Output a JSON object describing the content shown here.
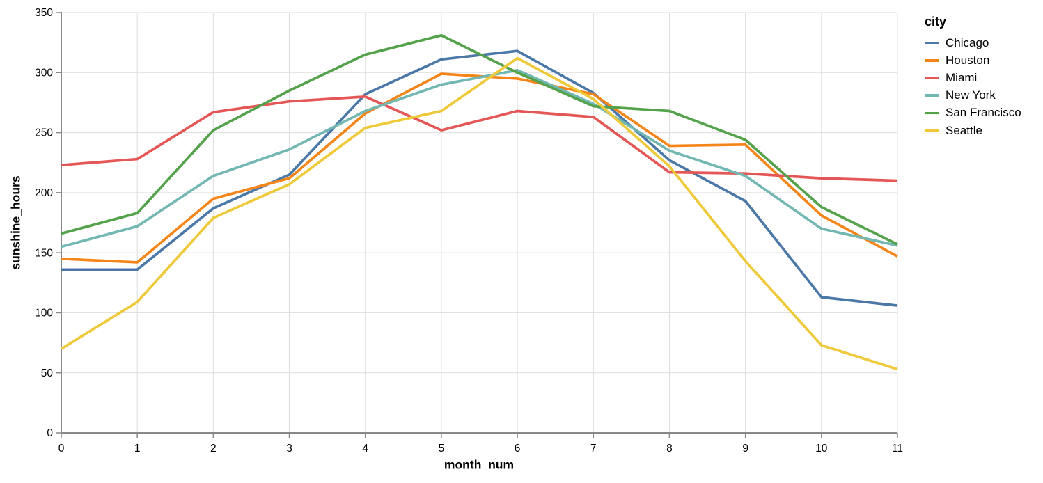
{
  "chart_data": {
    "type": "line",
    "title": "",
    "xlabel": "month_num",
    "ylabel": "sunshine_hours",
    "legend_title": "city",
    "legend_position": "right",
    "grid": true,
    "x_ticks": [
      0,
      1,
      2,
      3,
      4,
      5,
      6,
      7,
      8,
      9,
      10,
      11
    ],
    "y_ticks": [
      0,
      50,
      100,
      150,
      200,
      250,
      300,
      350
    ],
    "xlim": [
      0,
      11
    ],
    "ylim": [
      0,
      350
    ],
    "x": [
      0,
      1,
      2,
      3,
      4,
      5,
      6,
      7,
      8,
      9,
      10,
      11
    ],
    "background": "#ffffff",
    "grid_color": "#dddddd",
    "axis_color": "#888888",
    "label_color": "#000000",
    "series": [
      {
        "name": "Chicago",
        "color": "#4c78a8",
        "values": [
          136,
          136,
          187,
          215,
          282,
          311,
          318,
          283,
          227,
          193,
          113,
          106
        ]
      },
      {
        "name": "Houston",
        "color": "#f58518",
        "values": [
          145,
          142,
          195,
          212,
          266,
          299,
          295,
          282,
          239,
          240,
          181,
          147
        ]
      },
      {
        "name": "Miami",
        "color": "#e45756",
        "values": [
          223,
          228,
          267,
          276,
          280,
          252,
          268,
          263,
          217,
          216,
          212,
          210
        ]
      },
      {
        "name": "New York",
        "color": "#72b7b2",
        "values": [
          155,
          172,
          214,
          236,
          268,
          290,
          302,
          274,
          235,
          214,
          170,
          156
        ]
      },
      {
        "name": "San Francisco",
        "color": "#54a24b",
        "values": [
          166,
          183,
          252,
          285,
          315,
          331,
          300,
          272,
          268,
          244,
          188,
          157
        ]
      },
      {
        "name": "Seattle",
        "color": "#eeca3b",
        "values": [
          70,
          109,
          179,
          207,
          254,
          268,
          312,
          278,
          222,
          143,
          73,
          53
        ]
      }
    ]
  }
}
